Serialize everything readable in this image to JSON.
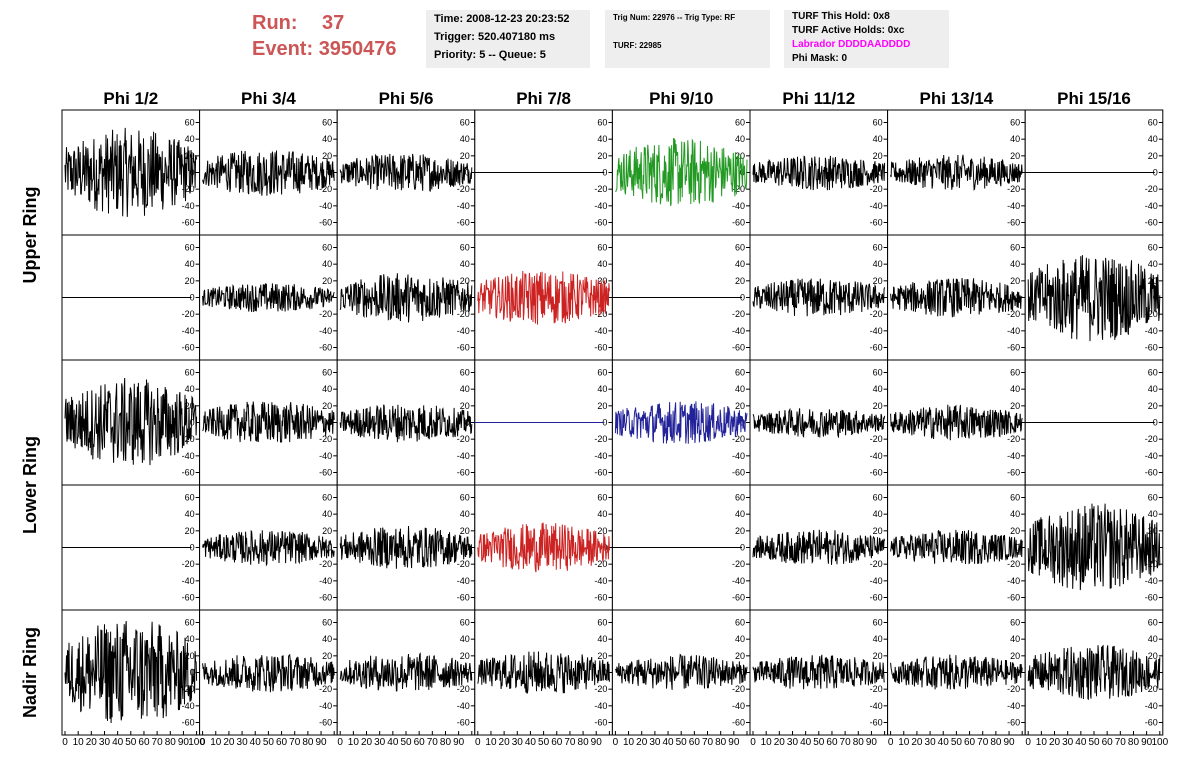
{
  "header": {
    "run_label": "Run:",
    "run_value": "37",
    "event_label": "Event:",
    "event_value": "3950476",
    "time": "Time: 2008-12-23 20:23:52",
    "trigger": "Trigger: 520.407180 ms",
    "priority": "Priority: 5 -- Queue: 5",
    "trig_num": "Trig Num: 22976 -- Trig Type: RF",
    "turf": "TURF: 22985",
    "turf_hold": "TURF This Hold: 0x8",
    "turf_active": "TURF Active Holds: 0xc",
    "labrador": "Labrador DDDDAADDDD",
    "phi_mask": "Phi Mask: 0",
    "labrador_color": "#ff00ff",
    "run_color": "#cc5555",
    "panel_bg": "#eeeeee"
  },
  "chart_data": {
    "type": "line",
    "columns": [
      "Phi 1/2",
      "Phi 3/4",
      "Phi 5/6",
      "Phi 7/8",
      "Phi 9/10",
      "Phi 11/12",
      "Phi 13/14",
      "Phi 15/16"
    ],
    "ring_labels": [
      "Upper Ring",
      "Lower Ring",
      "Nadir Ring"
    ],
    "xlim": [
      0,
      100
    ],
    "ylim": [
      -75,
      75
    ],
    "yticks": [
      -60,
      -40,
      -20,
      0,
      20,
      40,
      60
    ],
    "xticks": [
      0,
      10,
      20,
      30,
      40,
      50,
      60,
      70,
      80,
      90,
      100
    ],
    "trace_colors": {
      "normal": "#000000",
      "green": "#229922",
      "red": "#cc2222",
      "blue": "#222299"
    },
    "rows": [
      [
        {
          "color": "normal",
          "amp": 45
        },
        {
          "color": "normal",
          "amp": 24
        },
        {
          "color": "normal",
          "amp": 20
        },
        {
          "color": "flat"
        },
        {
          "color": "green",
          "amp": 35
        },
        {
          "color": "normal",
          "amp": 18
        },
        {
          "color": "normal",
          "amp": 18
        },
        {
          "color": "flat"
        }
      ],
      [
        {
          "color": "flat"
        },
        {
          "color": "normal",
          "amp": 15
        },
        {
          "color": "normal",
          "amp": 25
        },
        {
          "color": "red",
          "amp": 28
        },
        {
          "color": "flat"
        },
        {
          "color": "normal",
          "amp": 20
        },
        {
          "color": "normal",
          "amp": 20
        },
        {
          "color": "normal",
          "amp": 45
        }
      ],
      [
        {
          "color": "normal",
          "amp": 45
        },
        {
          "color": "normal",
          "amp": 22
        },
        {
          "color": "normal",
          "amp": 20
        },
        {
          "color": "flat-blue"
        },
        {
          "color": "blue",
          "amp": 22
        },
        {
          "color": "normal",
          "amp": 15
        },
        {
          "color": "normal",
          "amp": 18
        },
        {
          "color": "flat"
        }
      ],
      [
        {
          "color": "flat"
        },
        {
          "color": "normal",
          "amp": 18
        },
        {
          "color": "normal",
          "amp": 22
        },
        {
          "color": "red",
          "amp": 25
        },
        {
          "color": "flat"
        },
        {
          "color": "normal",
          "amp": 18
        },
        {
          "color": "normal",
          "amp": 18
        },
        {
          "color": "normal",
          "amp": 45
        }
      ],
      [
        {
          "color": "normal",
          "amp": 55
        },
        {
          "color": "normal",
          "amp": 20
        },
        {
          "color": "normal",
          "amp": 20
        },
        {
          "color": "normal",
          "amp": 22
        },
        {
          "color": "normal",
          "amp": 18
        },
        {
          "color": "normal",
          "amp": 18
        },
        {
          "color": "normal",
          "amp": 18
        },
        {
          "color": "normal",
          "amp": 28
        }
      ]
    ]
  }
}
